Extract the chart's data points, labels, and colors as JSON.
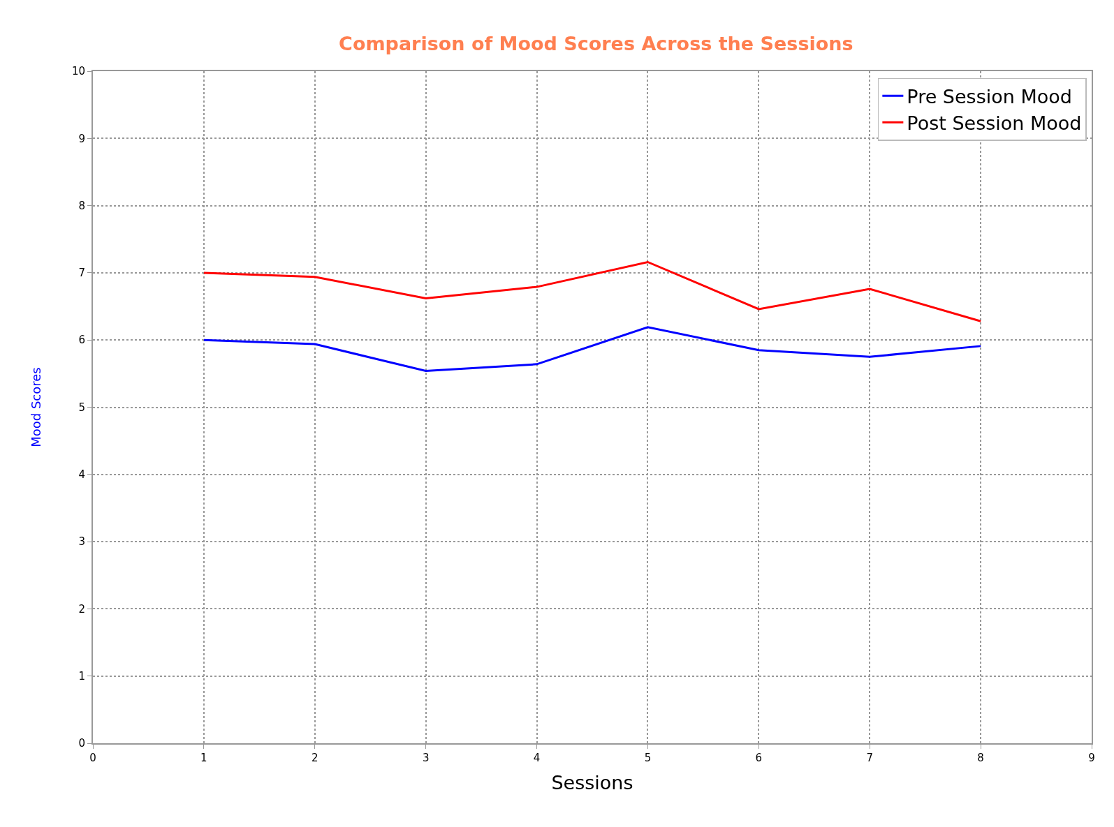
{
  "chart_data": {
    "type": "line",
    "title": "Comparison of Mood Scores Across the Sessions",
    "xlabel": "Sessions",
    "ylabel": "Mood Scores",
    "x": [
      1,
      2,
      3,
      4,
      5,
      6,
      7,
      8
    ],
    "series": [
      {
        "name": "Pre Session Mood",
        "color": "#0000ff",
        "values": [
          6.0,
          5.94,
          5.54,
          5.64,
          6.19,
          5.85,
          5.75,
          5.91
        ]
      },
      {
        "name": "Post Session Mood",
        "color": "#ff0000",
        "values": [
          7.0,
          6.94,
          6.62,
          6.79,
          7.16,
          6.46,
          6.76,
          6.28
        ]
      }
    ],
    "xlim": [
      0,
      9
    ],
    "xticks": [
      0,
      1,
      2,
      3,
      4,
      5,
      6,
      7,
      8,
      9
    ],
    "ylim": [
      0,
      10
    ],
    "yticks": [
      0,
      1,
      2,
      3,
      4,
      5,
      6,
      7,
      8,
      9,
      10
    ],
    "grid": true,
    "legend": "top right",
    "marker": "none",
    "line_style": "solid"
  }
}
